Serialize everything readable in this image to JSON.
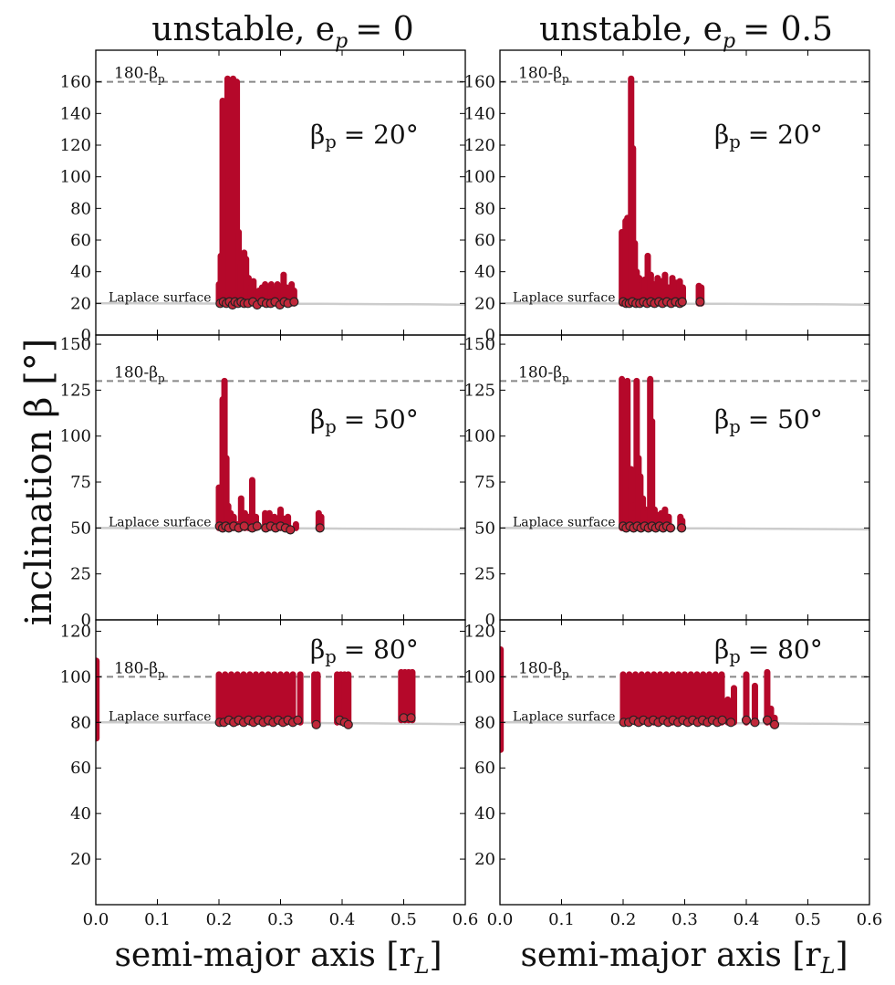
{
  "figure": {
    "column_titles": [
      "unstable, e",
      "unstable, e"
    ],
    "column_title_values": [
      "= 0",
      "= 0.5"
    ],
    "column_title_sub": "p",
    "ylabel": "inclination β [°]",
    "xlabel_prefix": "semi-major axis [r",
    "xlabel_sub": "L",
    "xlabel_suffix": "]",
    "laplace_label": "Laplace surface",
    "retro_label_prefix": "180-β",
    "retro_label_sub": "p"
  },
  "colors": {
    "points": "#b5082a",
    "points_alt": "#d0402c",
    "marker_edge": "#222222",
    "marker_fill": "#c0283a",
    "laplace_line": "#cccccc",
    "retro_line": "#888888",
    "axis": "#000000"
  },
  "chart_data": [
    {
      "type": "scatter",
      "panel": "e=0, beta=20",
      "beta_label": "β",
      "beta_label_sub": "p",
      "beta_label_value": "= 20°",
      "xlim": [
        0,
        0.6
      ],
      "ylim": [
        0,
        180
      ],
      "yticks": [
        0,
        20,
        40,
        60,
        80,
        100,
        120,
        140,
        160
      ],
      "show_xtick_labels": false,
      "retro_line": 160,
      "laplace": 20,
      "columns": [
        [
          0.2,
          20,
          32
        ],
        [
          0.203,
          20,
          50
        ],
        [
          0.206,
          20,
          148
        ],
        [
          0.208,
          20,
          100
        ],
        [
          0.211,
          20,
          120
        ],
        [
          0.214,
          20,
          162
        ],
        [
          0.217,
          20,
          105
        ],
        [
          0.22,
          20,
          98
        ],
        [
          0.223,
          20,
          162
        ],
        [
          0.226,
          20,
          132
        ],
        [
          0.229,
          20,
          160
        ],
        [
          0.232,
          20,
          65
        ],
        [
          0.235,
          20,
          45
        ],
        [
          0.238,
          20,
          38
        ],
        [
          0.241,
          20,
          52
        ],
        [
          0.244,
          20,
          48
        ],
        [
          0.248,
          20,
          36
        ],
        [
          0.252,
          20,
          30
        ],
        [
          0.256,
          20,
          34
        ],
        [
          0.26,
          20,
          26
        ],
        [
          0.265,
          20,
          28
        ],
        [
          0.27,
          20,
          30
        ],
        [
          0.275,
          20,
          32
        ],
        [
          0.28,
          20,
          28
        ],
        [
          0.285,
          20,
          32
        ],
        [
          0.29,
          20,
          29
        ],
        [
          0.295,
          20,
          32
        ],
        [
          0.3,
          20,
          26
        ],
        [
          0.305,
          20,
          38
        ],
        [
          0.31,
          20,
          30
        ],
        [
          0.318,
          20,
          32
        ],
        [
          0.322,
          20,
          28
        ]
      ],
      "markers": [
        [
          0.202,
          20
        ],
        [
          0.207,
          21
        ],
        [
          0.212,
          20
        ],
        [
          0.217,
          21
        ],
        [
          0.222,
          19
        ],
        [
          0.226,
          21
        ],
        [
          0.231,
          20
        ],
        [
          0.236,
          21
        ],
        [
          0.241,
          20
        ],
        [
          0.247,
          20
        ],
        [
          0.255,
          21
        ],
        [
          0.262,
          19
        ],
        [
          0.27,
          21
        ],
        [
          0.277,
          20
        ],
        [
          0.284,
          20
        ],
        [
          0.291,
          21
        ],
        [
          0.299,
          19
        ],
        [
          0.306,
          21
        ],
        [
          0.312,
          20
        ],
        [
          0.322,
          21
        ]
      ]
    },
    {
      "type": "scatter",
      "panel": "e=0.5, beta=20",
      "beta_label": "β",
      "beta_label_sub": "p",
      "beta_label_value": "= 20°",
      "xlim": [
        0,
        0.6
      ],
      "ylim": [
        0,
        180
      ],
      "yticks": [
        0,
        20,
        40,
        60,
        80,
        100,
        120,
        140,
        160
      ],
      "show_xtick_labels": false,
      "retro_line": 160,
      "laplace": 20,
      "columns": [
        [
          0.198,
          20,
          65
        ],
        [
          0.201,
          20,
          58
        ],
        [
          0.204,
          20,
          72
        ],
        [
          0.207,
          20,
          74
        ],
        [
          0.21,
          20,
          45
        ],
        [
          0.213,
          20,
          162
        ],
        [
          0.216,
          20,
          118
        ],
        [
          0.219,
          20,
          58
        ],
        [
          0.222,
          20,
          40
        ],
        [
          0.226,
          20,
          36
        ],
        [
          0.23,
          20,
          32
        ],
        [
          0.235,
          20,
          35
        ],
        [
          0.24,
          20,
          50
        ],
        [
          0.245,
          20,
          38
        ],
        [
          0.25,
          20,
          32
        ],
        [
          0.256,
          20,
          36
        ],
        [
          0.262,
          20,
          34
        ],
        [
          0.268,
          20,
          38
        ],
        [
          0.274,
          20,
          30
        ],
        [
          0.28,
          20,
          36
        ],
        [
          0.286,
          20,
          33
        ],
        [
          0.292,
          20,
          34
        ],
        [
          0.297,
          20,
          30
        ],
        [
          0.323,
          20,
          31
        ],
        [
          0.327,
          20,
          30
        ]
      ],
      "markers": [
        [
          0.2,
          21
        ],
        [
          0.205,
          20
        ],
        [
          0.21,
          20
        ],
        [
          0.215,
          21
        ],
        [
          0.221,
          20
        ],
        [
          0.227,
          20
        ],
        [
          0.233,
          21
        ],
        [
          0.239,
          20
        ],
        [
          0.245,
          21
        ],
        [
          0.251,
          20
        ],
        [
          0.258,
          21
        ],
        [
          0.264,
          20
        ],
        [
          0.271,
          21
        ],
        [
          0.278,
          20
        ],
        [
          0.285,
          21
        ],
        [
          0.292,
          20
        ],
        [
          0.296,
          21
        ],
        [
          0.325,
          21
        ]
      ]
    },
    {
      "type": "scatter",
      "panel": "e=0, beta=50",
      "beta_label": "β",
      "beta_label_sub": "p",
      "beta_label_value": "= 50°",
      "xlim": [
        0,
        0.6
      ],
      "ylim": [
        0,
        155
      ],
      "yticks": [
        0,
        25,
        50,
        75,
        100,
        125,
        150
      ],
      "show_xtick_labels": false,
      "retro_line": 130,
      "laplace": 50,
      "columns": [
        [
          0.2,
          50,
          72
        ],
        [
          0.203,
          50,
          68
        ],
        [
          0.206,
          50,
          120
        ],
        [
          0.209,
          50,
          130
        ],
        [
          0.212,
          50,
          88
        ],
        [
          0.215,
          50,
          62
        ],
        [
          0.219,
          50,
          58
        ],
        [
          0.224,
          50,
          56
        ],
        [
          0.23,
          50,
          52
        ],
        [
          0.236,
          50,
          66
        ],
        [
          0.242,
          50,
          58
        ],
        [
          0.248,
          50,
          56
        ],
        [
          0.254,
          50,
          76
        ],
        [
          0.26,
          50,
          56
        ],
        [
          0.275,
          50,
          58
        ],
        [
          0.282,
          50,
          58
        ],
        [
          0.29,
          50,
          56
        ],
        [
          0.3,
          50,
          60
        ],
        [
          0.306,
          50,
          55
        ],
        [
          0.312,
          50,
          56
        ],
        [
          0.325,
          50,
          52
        ],
        [
          0.362,
          50,
          58
        ],
        [
          0.366,
          50,
          56
        ]
      ],
      "markers": [
        [
          0.201,
          51
        ],
        [
          0.206,
          50
        ],
        [
          0.211,
          51
        ],
        [
          0.216,
          50
        ],
        [
          0.224,
          51
        ],
        [
          0.232,
          50
        ],
        [
          0.241,
          51
        ],
        [
          0.254,
          50
        ],
        [
          0.262,
          51
        ],
        [
          0.276,
          50
        ],
        [
          0.284,
          51
        ],
        [
          0.292,
          50
        ],
        [
          0.3,
          51
        ],
        [
          0.308,
          50
        ],
        [
          0.316,
          49
        ],
        [
          0.364,
          50
        ]
      ]
    },
    {
      "type": "scatter",
      "panel": "e=0.5, beta=50",
      "beta_label": "β",
      "beta_label_sub": "p",
      "beta_label_value": "= 50°",
      "xlim": [
        0,
        0.6
      ],
      "ylim": [
        0,
        155
      ],
      "yticks": [
        0,
        25,
        50,
        75,
        100,
        125,
        150
      ],
      "show_xtick_labels": false,
      "retro_line": 130,
      "laplace": 50,
      "columns": [
        [
          0.198,
          50,
          131
        ],
        [
          0.201,
          50,
          128
        ],
        [
          0.204,
          50,
          110
        ],
        [
          0.207,
          50,
          130
        ],
        [
          0.21,
          50,
          70
        ],
        [
          0.213,
          50,
          82
        ],
        [
          0.216,
          50,
          62
        ],
        [
          0.219,
          50,
          58
        ],
        [
          0.222,
          50,
          130
        ],
        [
          0.225,
          50,
          88
        ],
        [
          0.228,
          50,
          78
        ],
        [
          0.232,
          50,
          66
        ],
        [
          0.236,
          50,
          60
        ],
        [
          0.24,
          50,
          58
        ],
        [
          0.244,
          50,
          131
        ],
        [
          0.247,
          50,
          108
        ],
        [
          0.251,
          50,
          60
        ],
        [
          0.256,
          50,
          57
        ],
        [
          0.262,
          50,
          58
        ],
        [
          0.268,
          50,
          60
        ],
        [
          0.274,
          50,
          56
        ],
        [
          0.293,
          50,
          56
        ],
        [
          0.296,
          50,
          54
        ]
      ],
      "markers": [
        [
          0.2,
          51
        ],
        [
          0.205,
          50
        ],
        [
          0.211,
          51
        ],
        [
          0.217,
          50
        ],
        [
          0.223,
          51
        ],
        [
          0.229,
          50
        ],
        [
          0.235,
          51
        ],
        [
          0.241,
          50
        ],
        [
          0.247,
          51
        ],
        [
          0.253,
          50
        ],
        [
          0.259,
          51
        ],
        [
          0.265,
          50
        ],
        [
          0.271,
          51
        ],
        [
          0.277,
          50
        ],
        [
          0.295,
          50
        ]
      ]
    },
    {
      "type": "scatter",
      "panel": "e=0, beta=80",
      "beta_label": "β",
      "beta_label_sub": "p",
      "beta_label_value": "= 80°",
      "xlim": [
        0,
        0.6
      ],
      "ylim": [
        0,
        125
      ],
      "yticks": [
        20,
        40,
        60,
        80,
        100,
        120
      ],
      "show_xtick_labels": true,
      "xticks": [
        "0.0",
        "0.1",
        "0.2",
        "0.3",
        "0.4",
        "0.5",
        "0.6"
      ],
      "retro_line": 100,
      "laplace": 80,
      "columns": [
        [
          0.001,
          73,
          107
        ],
        [
          0.2,
          80,
          101
        ],
        [
          0.21,
          80,
          101
        ],
        [
          0.22,
          80,
          101
        ],
        [
          0.23,
          80,
          101
        ],
        [
          0.24,
          80,
          101
        ],
        [
          0.25,
          80,
          101
        ],
        [
          0.26,
          80,
          101
        ],
        [
          0.27,
          80,
          101
        ],
        [
          0.28,
          80,
          101
        ],
        [
          0.29,
          80,
          101
        ],
        [
          0.3,
          80,
          101
        ],
        [
          0.31,
          80,
          101
        ],
        [
          0.32,
          80,
          101
        ],
        [
          0.332,
          80,
          101
        ],
        [
          0.355,
          80,
          101
        ],
        [
          0.36,
          80,
          101
        ],
        [
          0.392,
          80,
          101
        ],
        [
          0.398,
          80,
          101
        ],
        [
          0.404,
          80,
          101
        ],
        [
          0.41,
          80,
          101
        ],
        [
          0.496,
          81,
          102
        ],
        [
          0.502,
          81,
          102
        ],
        [
          0.508,
          81,
          102
        ],
        [
          0.514,
          81,
          102
        ]
      ],
      "markers": [
        [
          0.201,
          80
        ],
        [
          0.208,
          80
        ],
        [
          0.216,
          81
        ],
        [
          0.224,
          80
        ],
        [
          0.232,
          81
        ],
        [
          0.24,
          80
        ],
        [
          0.248,
          81
        ],
        [
          0.256,
          80
        ],
        [
          0.264,
          81
        ],
        [
          0.272,
          80
        ],
        [
          0.28,
          81
        ],
        [
          0.288,
          80
        ],
        [
          0.296,
          81
        ],
        [
          0.304,
          80
        ],
        [
          0.312,
          81
        ],
        [
          0.32,
          80
        ],
        [
          0.328,
          81
        ],
        [
          0.358,
          79
        ],
        [
          0.396,
          81
        ],
        [
          0.404,
          80
        ],
        [
          0.41,
          79
        ],
        [
          0.5,
          82
        ],
        [
          0.512,
          82
        ]
      ]
    },
    {
      "type": "scatter",
      "panel": "e=0.5, beta=80",
      "beta_label": "β",
      "beta_label_sub": "p",
      "beta_label_value": "= 80°",
      "xlim": [
        0,
        0.6
      ],
      "ylim": [
        0,
        125
      ],
      "yticks": [
        20,
        40,
        60,
        80,
        100,
        120
      ],
      "show_xtick_labels": true,
      "xticks": [
        "0.0",
        "0.1",
        "0.2",
        "0.3",
        "0.4",
        "0.5",
        "0.6"
      ],
      "retro_line": 100,
      "laplace": 80,
      "columns": [
        [
          0.001,
          68,
          112
        ],
        [
          0.2,
          80,
          101
        ],
        [
          0.21,
          80,
          101
        ],
        [
          0.22,
          80,
          101
        ],
        [
          0.23,
          80,
          101
        ],
        [
          0.24,
          80,
          101
        ],
        [
          0.25,
          80,
          101
        ],
        [
          0.26,
          80,
          101
        ],
        [
          0.27,
          80,
          101
        ],
        [
          0.28,
          80,
          101
        ],
        [
          0.29,
          80,
          101
        ],
        [
          0.3,
          80,
          101
        ],
        [
          0.31,
          80,
          101
        ],
        [
          0.32,
          80,
          101
        ],
        [
          0.33,
          80,
          101
        ],
        [
          0.34,
          80,
          101
        ],
        [
          0.35,
          80,
          101
        ],
        [
          0.36,
          80,
          101
        ],
        [
          0.37,
          80,
          90
        ],
        [
          0.38,
          80,
          95
        ],
        [
          0.4,
          80,
          101
        ],
        [
          0.414,
          80,
          96
        ],
        [
          0.434,
          80,
          102
        ],
        [
          0.44,
          80,
          86
        ],
        [
          0.446,
          80,
          82
        ]
      ],
      "markers": [
        [
          0.201,
          80
        ],
        [
          0.209,
          80
        ],
        [
          0.217,
          81
        ],
        [
          0.225,
          80
        ],
        [
          0.233,
          81
        ],
        [
          0.241,
          80
        ],
        [
          0.249,
          81
        ],
        [
          0.257,
          80
        ],
        [
          0.265,
          81
        ],
        [
          0.273,
          80
        ],
        [
          0.281,
          81
        ],
        [
          0.289,
          80
        ],
        [
          0.297,
          81
        ],
        [
          0.305,
          80
        ],
        [
          0.313,
          81
        ],
        [
          0.321,
          80
        ],
        [
          0.329,
          81
        ],
        [
          0.337,
          80
        ],
        [
          0.345,
          81
        ],
        [
          0.353,
          80
        ],
        [
          0.361,
          81
        ],
        [
          0.375,
          80
        ],
        [
          0.4,
          81
        ],
        [
          0.414,
          80
        ],
        [
          0.434,
          81
        ],
        [
          0.446,
          79
        ]
      ]
    }
  ]
}
